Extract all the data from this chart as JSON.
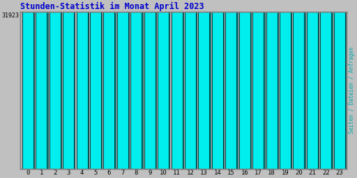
{
  "title": "Stunden-Statistik im Monat April 2023",
  "ylabel_right": "Seiten / Dateien / Anfragen",
  "ytick_label": "31923",
  "bar_color": "#00EEEE",
  "bar_edge_color": "#004444",
  "bar_shadow_color": "#008888",
  "background_color": "#C0C0C0",
  "plot_bg_color": "#C0C0C0",
  "title_color": "#0000CC",
  "ylabel_color": "#00AAAA",
  "ytick_color": "#000000",
  "xtick_color": "#000000",
  "border_color": "#808080",
  "categories": [
    0,
    1,
    2,
    3,
    4,
    5,
    6,
    7,
    8,
    9,
    10,
    11,
    12,
    13,
    14,
    15,
    16,
    17,
    18,
    19,
    20,
    21,
    22,
    23
  ],
  "values": [
    31250,
    31180,
    31180,
    31380,
    31450,
    31530,
    31700,
    31720,
    31780,
    31820,
    31850,
    31850,
    31820,
    31820,
    31600,
    31530,
    31530,
    31510,
    31470,
    31420,
    31370,
    31330,
    31230,
    31210
  ],
  "ymin": 31050,
  "ymax": 31923,
  "figsize": [
    5.12,
    2.56
  ],
  "dpi": 100
}
